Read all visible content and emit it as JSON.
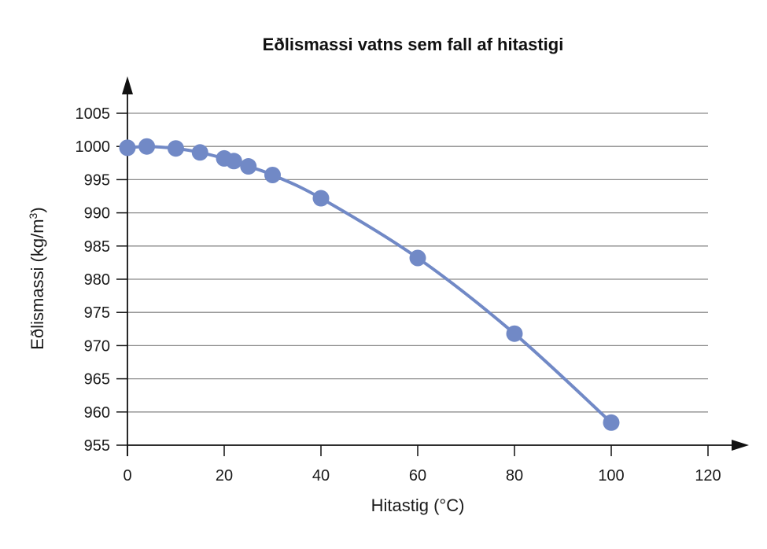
{
  "chart_data": {
    "type": "scatter",
    "title": "Eðlismassi vatns sem fall af hitastigi",
    "xlabel": "Hitastig (°C)",
    "ylabel_main": "Eðlismassi (kg/m",
    "ylabel_sup": "3",
    "ylabel_close": ")",
    "xlim": [
      0,
      120
    ],
    "ylim": [
      955,
      1005
    ],
    "x_ticks": [
      0,
      20,
      40,
      60,
      80,
      100,
      120
    ],
    "y_ticks": [
      955,
      960,
      965,
      970,
      975,
      980,
      985,
      990,
      995,
      1000,
      1005
    ],
    "grid": true,
    "series": [
      {
        "points": [
          {
            "x": 0,
            "y": 999.8
          },
          {
            "x": 4,
            "y": 1000.0
          },
          {
            "x": 10,
            "y": 999.7
          },
          {
            "x": 15,
            "y": 999.1
          },
          {
            "x": 20,
            "y": 998.2
          },
          {
            "x": 22,
            "y": 997.8
          },
          {
            "x": 25,
            "y": 997.0
          },
          {
            "x": 30,
            "y": 995.7
          },
          {
            "x": 40,
            "y": 992.2
          },
          {
            "x": 60,
            "y": 983.2
          },
          {
            "x": 80,
            "y": 971.8
          },
          {
            "x": 100,
            "y": 958.4
          }
        ]
      }
    ],
    "colors": {
      "series": "#7189c6",
      "grid": "#8a8a8a",
      "axis": "#111111"
    }
  }
}
